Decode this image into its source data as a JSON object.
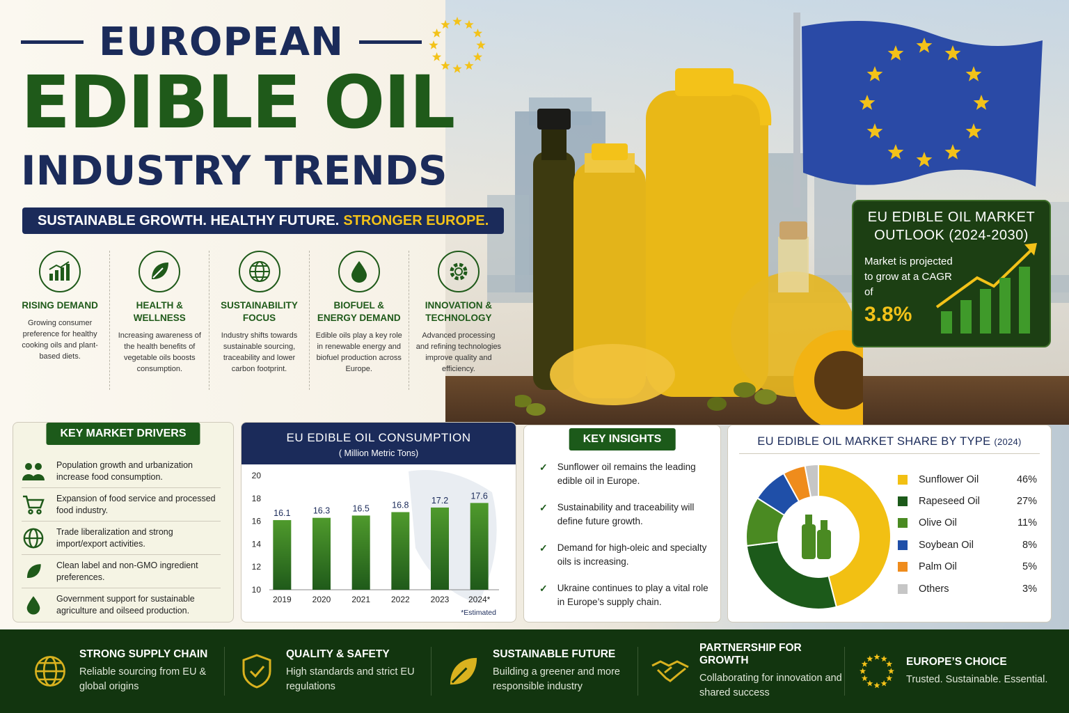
{
  "header": {
    "title_top": "EUROPEAN",
    "title_main": "EDIBLE OIL",
    "title_sub": "INDUSTRY TRENDS",
    "tagline_main": "SUSTAINABLE GROWTH. HEALTHY FUTURE.",
    "tagline_accent": "STRONGER EUROPE."
  },
  "features": [
    {
      "icon": "rising-chart-icon",
      "title": "RISING DEMAND",
      "desc": "Growing consumer preference for healthy cooking oils and plant-based diets."
    },
    {
      "icon": "leaf-icon",
      "title": "HEALTH & WELLNESS",
      "desc": "Increasing awareness of the health benefits of vegetable oils boosts consumption."
    },
    {
      "icon": "globe-icon",
      "title": "SUSTAINABILITY FOCUS",
      "desc": "Industry shifts towards sustainable sourcing, traceability and lower carbon footprint."
    },
    {
      "icon": "oil-drop-icon",
      "title": "BIOFUEL & ENERGY DEMAND",
      "desc": "Edible oils play a key role in renewable energy and biofuel production across Europe."
    },
    {
      "icon": "gear-icon",
      "title": "INNOVATION & TECHNOLOGY",
      "desc": "Advanced processing and refining technologies improve quality and efficiency."
    }
  ],
  "outlook": {
    "title": "EU EDIBLE OIL MARKET OUTLOOK (2024-2030)",
    "desc": "Market is projected to grow at a CAGR of",
    "value": "3.8%"
  },
  "drivers": {
    "title": "KEY MARKET DRIVERS",
    "items": [
      {
        "icon": "people-icon",
        "text": "Population growth and urbanization increase food consumption."
      },
      {
        "icon": "cart-icon",
        "text": "Expansion of food service and processed food industry."
      },
      {
        "icon": "globe-icon",
        "text": "Trade liberalization and strong import/export activities."
      },
      {
        "icon": "leaf-icon",
        "text": "Clean label and non-GMO ingredient preferences."
      },
      {
        "icon": "drop-icon",
        "text": "Government support for sustainable agriculture and oilseed production."
      }
    ]
  },
  "consumption": {
    "title": "EU EDIBLE OIL CONSUMPTION",
    "subtitle": "( Million Metric Tons)",
    "note": "*Estimated"
  },
  "insights": {
    "title": "KEY INSIGHTS",
    "items": [
      "Sunflower oil remains the leading edible oil in Europe.",
      "Sustainability and traceability will define future growth.",
      "Demand for high-oleic and specialty oils is increasing.",
      "Ukraine continues to play a vital role in Europe’s supply chain."
    ]
  },
  "share": {
    "title": "EU EDIBLE OIL MARKET SHARE BY TYPE",
    "year": "(2024)"
  },
  "chart_data": [
    {
      "type": "bar",
      "title": "EU EDIBLE OIL CONSUMPTION",
      "ylabel": "( Million Metric Tons)",
      "categories": [
        "2019",
        "2020",
        "2021",
        "2022",
        "2023",
        "2024*"
      ],
      "values": [
        16.1,
        16.3,
        16.5,
        16.8,
        17.2,
        17.6
      ],
      "ylim": [
        10,
        20
      ],
      "yticks": [
        10,
        12,
        14,
        16,
        18,
        20
      ],
      "grid": false,
      "color": "#3f8a25"
    },
    {
      "type": "pie",
      "title": "EU EDIBLE OIL MARKET SHARE BY TYPE (2024)",
      "categories": [
        "Sunflower Oil",
        "Rapeseed Oil",
        "Olive Oil",
        "Soybean Oil",
        "Palm Oil",
        "Others"
      ],
      "values": [
        46,
        27,
        11,
        8,
        5,
        3
      ],
      "labels": [
        "46%",
        "27%",
        "11%",
        "8%",
        "5%",
        "3%"
      ],
      "colors": [
        "#f2c013",
        "#1c5a1a",
        "#4a8a22",
        "#1f4fa8",
        "#ef8c1c",
        "#c6c6c6"
      ],
      "legend": "right"
    },
    {
      "type": "bar",
      "title": "",
      "values": [
        2,
        3,
        4,
        5,
        6
      ],
      "color": "#3f9a2a"
    }
  ],
  "footer": [
    {
      "icon": "globe-icon",
      "title": "STRONG SUPPLY CHAIN",
      "desc": "Reliable sourcing from EU & global origins"
    },
    {
      "icon": "shield-check-icon",
      "title": "QUALITY & SAFETY",
      "desc": "High standards and strict EU regulations"
    },
    {
      "icon": "leaf-icon",
      "title": "SUSTAINABLE FUTURE",
      "desc": "Building a greener and more responsible industry"
    },
    {
      "icon": "handshake-icon",
      "title": "PARTNERSHIP FOR GROWTH",
      "desc": "Collaborating for innovation and shared success"
    },
    {
      "icon": "eu-stars-icon",
      "title": "EUROPE’S CHOICE",
      "desc": "Trusted. Sustainable. Essential."
    }
  ],
  "colors": {
    "navy": "#1b2b5a",
    "green": "#1f5a1a",
    "gold": "#f3c219"
  }
}
